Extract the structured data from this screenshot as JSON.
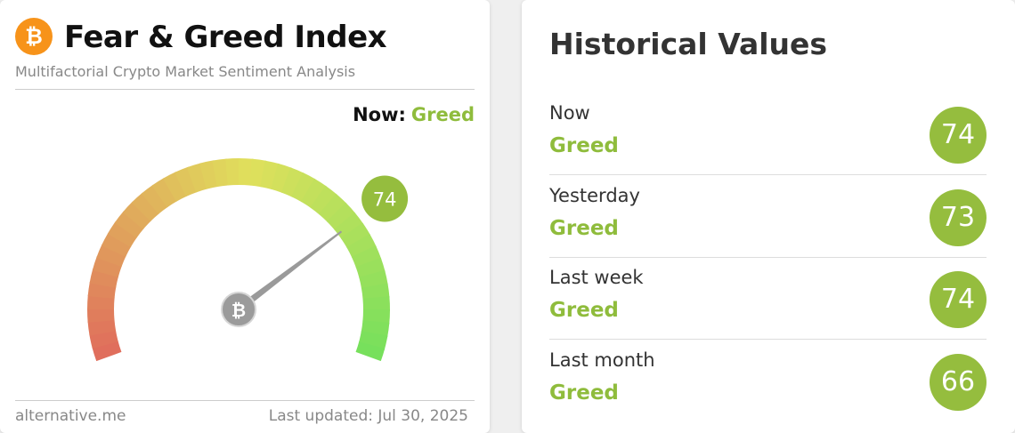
{
  "header": {
    "title": "Fear & Greed Index",
    "subtitle": "Multifactorial Crypto Market Sentiment Analysis"
  },
  "gauge": {
    "now_label": "Now:",
    "classification": "Greed",
    "value": 74,
    "range": [
      0,
      100
    ]
  },
  "footer": {
    "source": "alternative.me",
    "updated": "Last updated: Jul 30, 2025"
  },
  "history": {
    "title": "Historical Values",
    "rows": [
      {
        "period": "Now",
        "classification": "Greed",
        "value": 74
      },
      {
        "period": "Yesterday",
        "classification": "Greed",
        "value": 73
      },
      {
        "period": "Last week",
        "classification": "Greed",
        "value": 74
      },
      {
        "period": "Last month",
        "classification": "Greed",
        "value": 66
      }
    ]
  }
}
